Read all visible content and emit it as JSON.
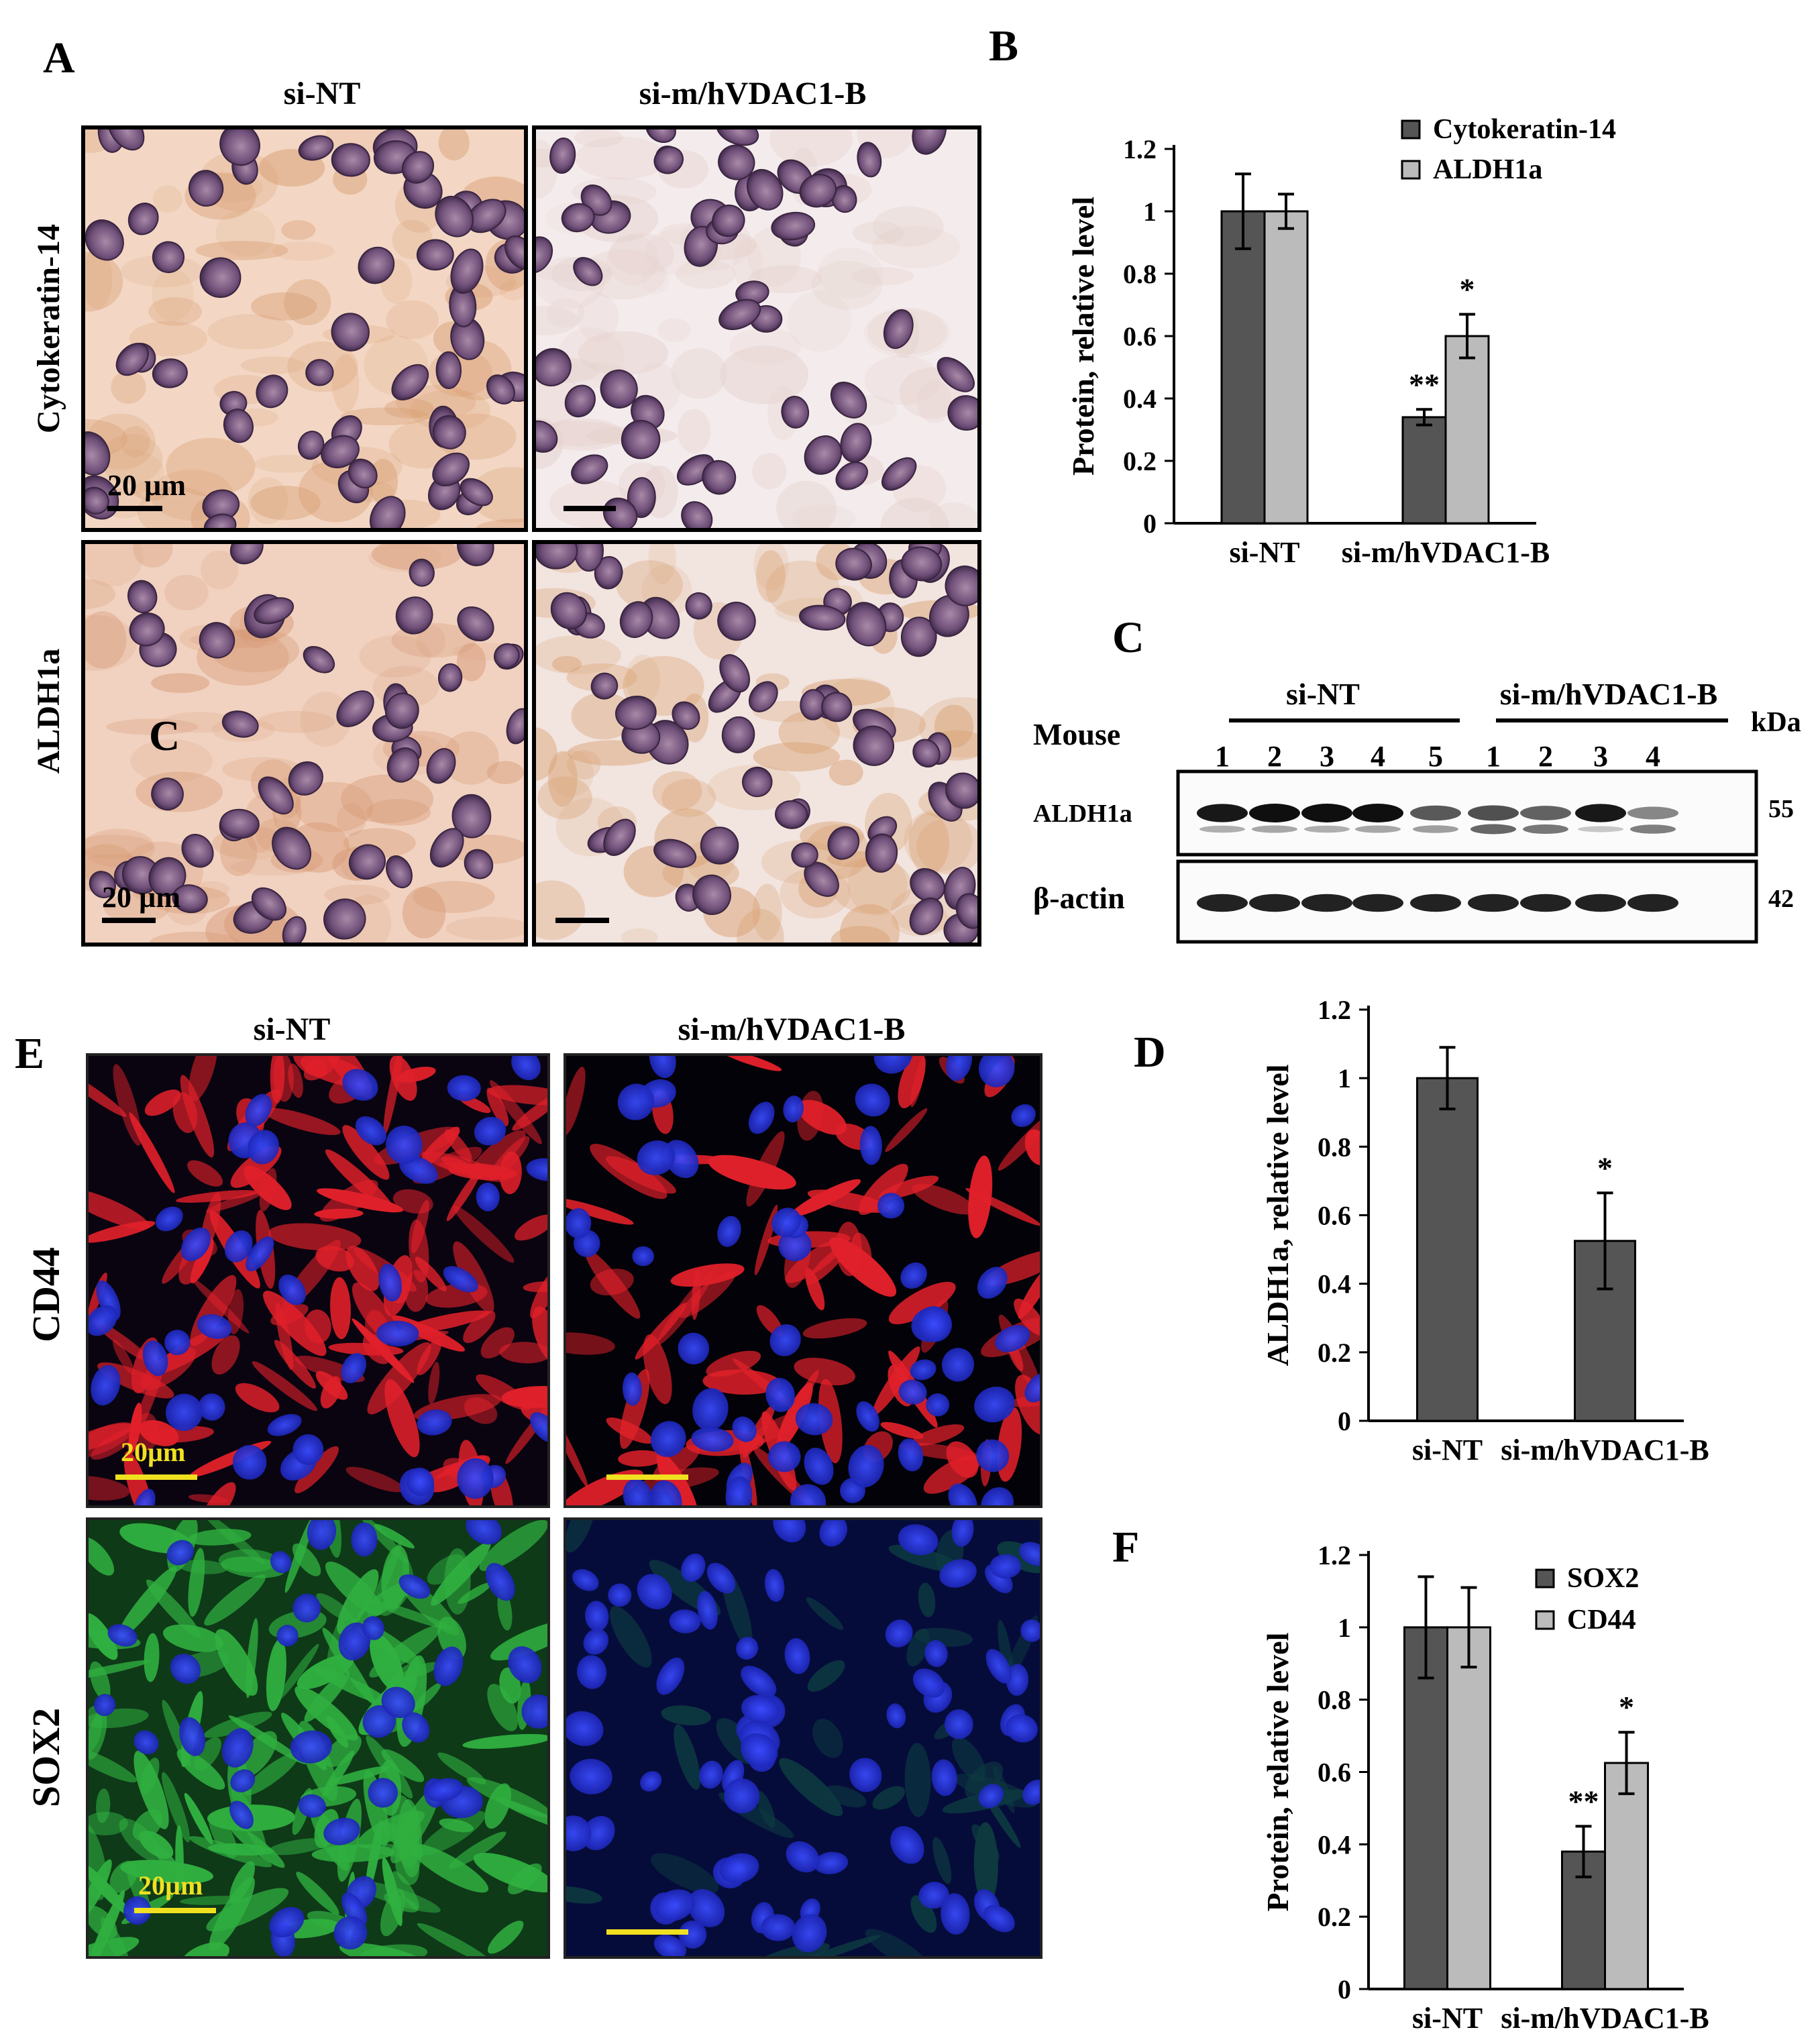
{
  "panel_letters": {
    "A": "A",
    "B": "B",
    "C": "C",
    "D": "D",
    "E": "E",
    "F": "F"
  },
  "panelA": {
    "col_headers": [
      "si-NT",
      "si-m/hVDAC1-B"
    ],
    "row_labels": [
      "Cytokeratin-14",
      "ALDH1a"
    ],
    "scale_label": "20 µm",
    "inner_letter": "C"
  },
  "panelC": {
    "group_labels": [
      "si-NT",
      "si-m/hVDAC1-B"
    ],
    "mouse_label": "Mouse",
    "kda_label": "kDa",
    "lanes": [
      "1",
      "2",
      "3",
      "4",
      "5",
      "1",
      "2",
      "3",
      "4"
    ],
    "rows": [
      {
        "label": "ALDH1a",
        "kda": "55",
        "intensity": [
          0.95,
          1.0,
          1.0,
          1.0,
          0.6,
          0.65,
          0.55,
          0.95,
          0.35
        ]
      },
      {
        "label": "β-actin",
        "kda": "42",
        "intensity": [
          0.9,
          0.9,
          0.9,
          0.9,
          0.9,
          0.9,
          0.9,
          0.9,
          0.9
        ]
      }
    ]
  },
  "panelE": {
    "col_headers": [
      "si-NT",
      "si-m/hVDAC1-B"
    ],
    "row_labels": [
      "CD44",
      "SOX2"
    ],
    "scale_label": "20µm"
  },
  "colors": {
    "dark_bar": "#555555",
    "light_bar": "#bbbbbb",
    "ihc_bg": "#f3d7c4",
    "cd44_red": "#e0202a",
    "dapi_blue": "#2030e0",
    "sox2_green": "#30b040",
    "scale_yellow": "#f0e020"
  },
  "chart_data": [
    {
      "id": "B",
      "type": "bar",
      "categories": [
        "si-NT",
        "si-m/hVDAC1-B"
      ],
      "series": [
        {
          "name": "Cytokeratin-14",
          "values": [
            1.0,
            0.34
          ],
          "errors": [
            0.12,
            0.025
          ]
        },
        {
          "name": "ALDH1a",
          "values": [
            1.0,
            0.6
          ],
          "errors": [
            0.055,
            0.07
          ]
        }
      ],
      "ylabel": "Protein, relative level",
      "ylim": [
        0,
        1.2
      ],
      "yticks": [
        "0",
        "0.2",
        "0.4",
        "0.6",
        "0.8",
        "1",
        "1.2"
      ],
      "annotations": [
        {
          "category": 1,
          "series": 0,
          "text": "**"
        },
        {
          "category": 1,
          "series": 1,
          "text": "*"
        }
      ],
      "legend": "top-right"
    },
    {
      "id": "D",
      "type": "bar",
      "categories": [
        "si-NT",
        "si-m/hVDAC1-B"
      ],
      "series": [
        {
          "values": [
            1.0,
            0.525
          ],
          "errors": [
            0.09,
            0.14
          ]
        }
      ],
      "ylabel": "ALDH1a, relative level",
      "ylim": [
        0,
        1.2
      ],
      "yticks": [
        "0",
        "0.2",
        "0.4",
        "0.6",
        "0.8",
        "1",
        "1.2"
      ],
      "annotations": [
        {
          "category": 1,
          "series": 0,
          "text": "*"
        }
      ]
    },
    {
      "id": "F",
      "type": "bar",
      "categories": [
        "si-NT",
        "si-m/hVDAC1-B"
      ],
      "series": [
        {
          "name": "SOX2",
          "values": [
            1.0,
            0.38
          ],
          "errors": [
            0.14,
            0.07
          ]
        },
        {
          "name": "CD44",
          "values": [
            1.0,
            0.625
          ],
          "errors": [
            0.11,
            0.085
          ]
        }
      ],
      "ylabel": "Protein, relative  level",
      "ylim": [
        0,
        1.2
      ],
      "yticks": [
        "0",
        "0.2",
        "0.4",
        "0.6",
        "0.8",
        "1",
        "1.2"
      ],
      "annotations": [
        {
          "category": 1,
          "series": 0,
          "text": "**"
        },
        {
          "category": 1,
          "series": 1,
          "text": "*"
        }
      ],
      "legend": "top-right"
    }
  ]
}
